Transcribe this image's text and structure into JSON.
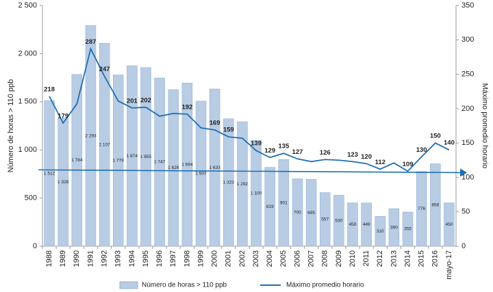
{
  "chart_data": {
    "type": "bar-line",
    "categories": [
      "1988",
      "1989",
      "1990",
      "1991",
      "1992",
      "1993",
      "1994",
      "1995",
      "1996",
      "1997",
      "1998",
      "1999",
      "2000",
      "2001",
      "2002",
      "2003",
      "2004",
      "2005",
      "2006",
      "2007",
      "2008",
      "2009",
      "2010",
      "2011",
      "2012",
      "2013",
      "2014",
      "2015",
      "2016",
      "mayo-17"
    ],
    "series": [
      {
        "name": "Número de horas > 110 ppb",
        "type": "bar",
        "color": "#b8cce4",
        "values": [
          1512,
          1328,
          1784,
          2293,
          2107,
          1779,
          1874,
          1855,
          1747,
          1626,
          1694,
          1507,
          1633,
          1323,
          1292,
          1100,
          819,
          901,
          700,
          695,
          557,
          530,
          450,
          449,
          310,
          390,
          355,
          776,
          856,
          450
        ],
        "value_labels": [
          "1 512",
          "1 328",
          "1 784",
          "2 293",
          "2 107",
          "1 779",
          "1 874",
          "1 855",
          "1 747",
          "1 626",
          "1 694",
          "1 507",
          "1 633",
          "1 323",
          "1 292",
          "1 100",
          "819",
          "901",
          "700",
          "695",
          "557",
          "530",
          "450",
          "449",
          "310",
          "390",
          "355",
          "776",
          "856",
          "450"
        ]
      },
      {
        "name": "Máximo promedio horario",
        "type": "line",
        "axis": "y2",
        "color": "#1f6fb2",
        "values": [
          218,
          179,
          207,
          287,
          247,
          211,
          201,
          202,
          189,
          193,
          192,
          172,
          169,
          159,
          157,
          139,
          129,
          135,
          127,
          123,
          126,
          125,
          123,
          120,
          112,
          121,
          109,
          130,
          150,
          140
        ],
        "value_labels": [
          "218",
          "179",
          null,
          "287",
          "247",
          null,
          "201",
          "202",
          null,
          null,
          "192",
          null,
          "169",
          "159",
          null,
          "139",
          "129",
          "135",
          "127",
          null,
          "126",
          null,
          "123",
          "120",
          "112",
          null,
          "109",
          "130",
          "150",
          "140"
        ]
      }
    ],
    "trend_line": {
      "axis": "y2",
      "color": "#1f6fb2",
      "values": [
        111,
        107
      ]
    },
    "ylabel": "Número de horas > 110 ppb",
    "y2label": "Máximo promedio horario",
    "ylim": [
      0,
      2500
    ],
    "yticks": [
      0,
      500,
      {
        "value": 1000,
        "label": "1 000"
      },
      {
        "value": 1500,
        "label": "1 500"
      },
      {
        "value": 2000,
        "label": "2 000"
      },
      {
        "value": 2500,
        "label": "2 500"
      }
    ],
    "y2lim": [
      0,
      350
    ],
    "y2ticks": [
      0,
      50,
      100,
      150,
      200,
      250,
      300,
      350
    ],
    "legend": "bottom"
  }
}
